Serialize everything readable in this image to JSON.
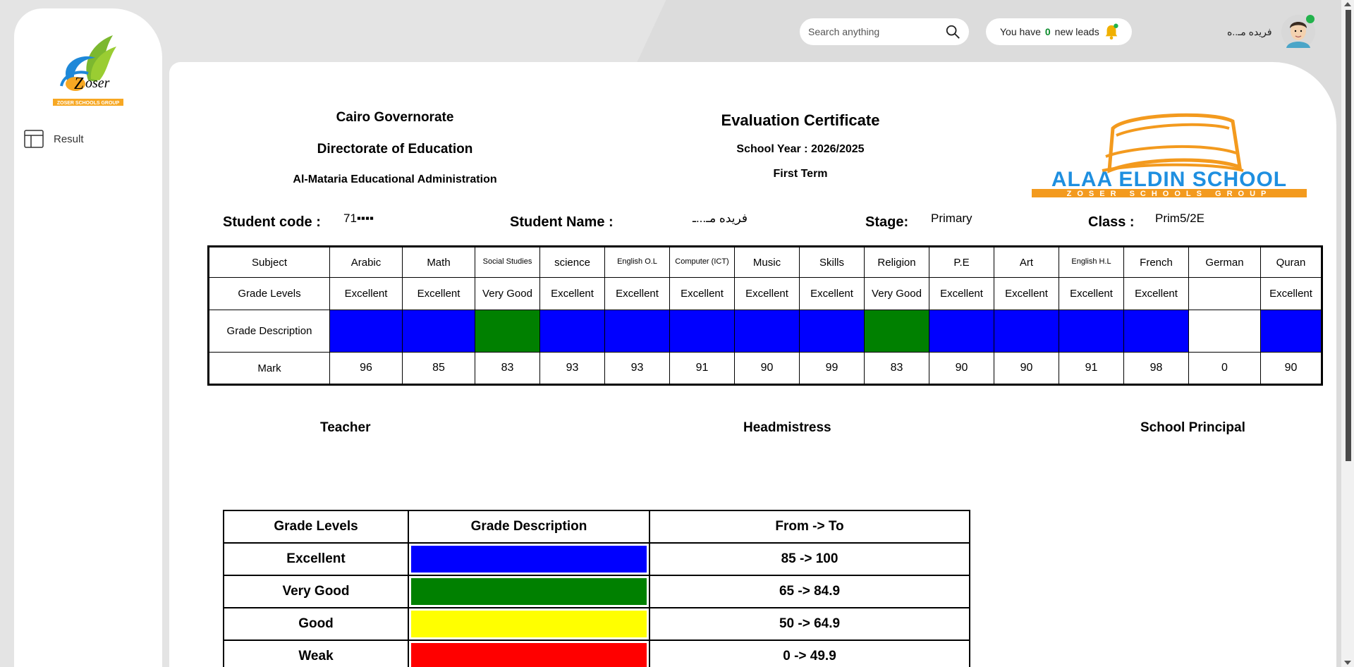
{
  "topbar": {
    "search_placeholder": "Search anything",
    "leads_prefix": "You have",
    "leads_count": "0",
    "leads_suffix": "new leads",
    "user_name": "فريده مـ..ه"
  },
  "sidebar": {
    "logo_text": "Zoser",
    "logo_subtext": "ZOSER SCHOOLS GROUP",
    "items": [
      {
        "label": "Result",
        "icon": "table-icon"
      }
    ]
  },
  "header": {
    "left": [
      "Cairo Governorate",
      "Directorate of Education",
      "Al-Mataria Educational Administration"
    ],
    "title": "Evaluation Certificate",
    "school_year": "School Year : 2026/2025",
    "term": "First Term",
    "school_logo_text": "ALAA ELDIN SCHOOL",
    "school_logo_subtext": "ZOSER SCHOOLS GROUP"
  },
  "student": {
    "code_label": "Student code :",
    "code_value": "71▪▪▪▪",
    "name_label": "Student Name :",
    "name_value": "فريده مـ...ـ",
    "stage_label": "Stage:",
    "stage_value": "Primary",
    "class_label": "Class :",
    "class_value": "Prim5/2E"
  },
  "grades_table": {
    "row_labels": [
      "Subject",
      "Grade Levels",
      "Grade Description",
      "Mark"
    ],
    "subjects": [
      "Arabic",
      "Math",
      "Social Studies",
      "science",
      "English O.L",
      "Computer (ICT)",
      "Music",
      "Skills",
      "Religion",
      "P.E",
      "Art",
      "English H.L",
      "French",
      "German",
      "Quran"
    ],
    "levels": [
      "Excellent",
      "Excellent",
      "Very Good",
      "Excellent",
      "Excellent",
      "Excellent",
      "Excellent",
      "Excellent",
      "Very Good",
      "Excellent",
      "Excellent",
      "Excellent",
      "Excellent",
      "",
      "Excellent"
    ],
    "colors": [
      "#0000ff",
      "#0000ff",
      "#008000",
      "#0000ff",
      "#0000ff",
      "#0000ff",
      "#0000ff",
      "#0000ff",
      "#008000",
      "#0000ff",
      "#0000ff",
      "#0000ff",
      "#0000ff",
      "#ffffff",
      "#0000ff"
    ],
    "marks": [
      "96",
      "85",
      "83",
      "93",
      "93",
      "91",
      "90",
      "99",
      "83",
      "90",
      "90",
      "91",
      "98",
      "0",
      "90"
    ]
  },
  "signatures": [
    "Teacher",
    "Headmistress",
    "School Principal"
  ],
  "legend": {
    "headers": [
      "Grade Levels",
      "Grade Description",
      "From -> To"
    ],
    "rows": [
      {
        "level": "Excellent",
        "color": "#0000ff",
        "range": "85 -> 100"
      },
      {
        "level": "Very Good",
        "color": "#008000",
        "range": "65 -> 84.9"
      },
      {
        "level": "Good",
        "color": "#ffff00",
        "range": "50 -> 64.9"
      },
      {
        "level": "Weak",
        "color": "#ff0000",
        "range": "0 -> 49.9"
      }
    ]
  }
}
